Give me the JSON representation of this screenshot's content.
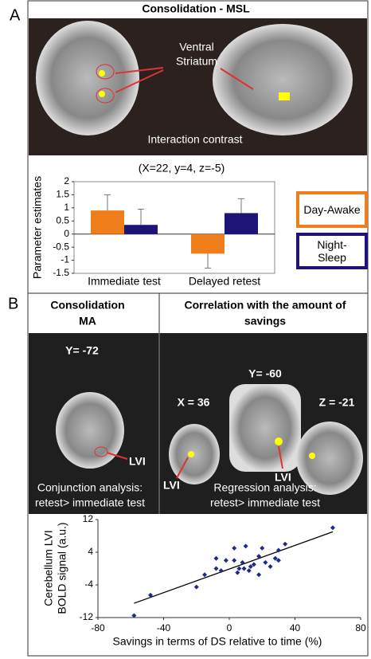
{
  "figure": {
    "panel_a_label": "A",
    "panel_a_title": "Consolidation - MSL",
    "ventral_striatum": [
      "Ventral",
      "Striatum"
    ],
    "interaction_contrast": "Interaction contrast",
    "panel_b_label": "B",
    "b_left_header": [
      "Consolidation",
      "MA"
    ],
    "b_right_header": [
      "Correlation with the amount of",
      "savings"
    ],
    "coord_y72": "Y= -72",
    "coord_x36": "X = 36",
    "coord_y60": "Y= -60",
    "coord_z21": "Z = -21",
    "lvi": "LVI",
    "conjunction": [
      "Conjunction analysis:",
      "retest> immediate test"
    ],
    "regression": [
      "Regression analysis:",
      "retest> immediate test"
    ]
  },
  "chart_data": [
    {
      "type": "bar",
      "title": "(X=22, y=4, z=-5)",
      "y_label": "Parameter estimates",
      "categories": [
        "Immediate test",
        "Delayed retest"
      ],
      "series": [
        {
          "name": "Day-Awake",
          "color": "#ee7d1a",
          "values": [
            0.9,
            -0.75
          ],
          "errors": [
            0.6,
            0.55
          ]
        },
        {
          "name": "Night-Sleep",
          "color": "#1e1478",
          "values": [
            0.35,
            0.8
          ],
          "errors": [
            0.6,
            0.55
          ]
        }
      ],
      "ylim": [
        -1.5,
        2
      ],
      "yticks": [
        -1.5,
        -1,
        -0.5,
        0,
        0.5,
        1,
        1.5,
        2
      ]
    },
    {
      "type": "scatter",
      "x_label": "Savings in terms of DS relative to time (%)",
      "y_label": [
        "Cerebellum LVI",
        "BOLD signal (a.u.)"
      ],
      "color": "#1e2a8a",
      "x": [
        -58,
        -48,
        -20,
        -15,
        -8,
        -5,
        -8,
        -2,
        3,
        3,
        5,
        6,
        8,
        9,
        10,
        12,
        13,
        15,
        18,
        18,
        20,
        22,
        25,
        28,
        30,
        30,
        34,
        63
      ],
      "y": [
        -11.5,
        -6.5,
        -4.5,
        -1.5,
        2.5,
        -0.5,
        0,
        2,
        2,
        5,
        -1,
        0,
        1.5,
        0,
        5.5,
        -0.5,
        0.5,
        1,
        3,
        -1.5,
        5,
        1.5,
        0.5,
        2.5,
        4.5,
        2,
        6,
        10
      ],
      "trendline": {
        "x": [
          -58,
          63
        ],
        "y": [
          -8.5,
          9
        ]
      },
      "xlim": [
        -80,
        80
      ],
      "xticks": [
        -80,
        -40,
        0,
        40,
        80
      ],
      "ylim": [
        -12,
        12
      ],
      "yticks": [
        -12,
        -4,
        4,
        12
      ]
    }
  ]
}
